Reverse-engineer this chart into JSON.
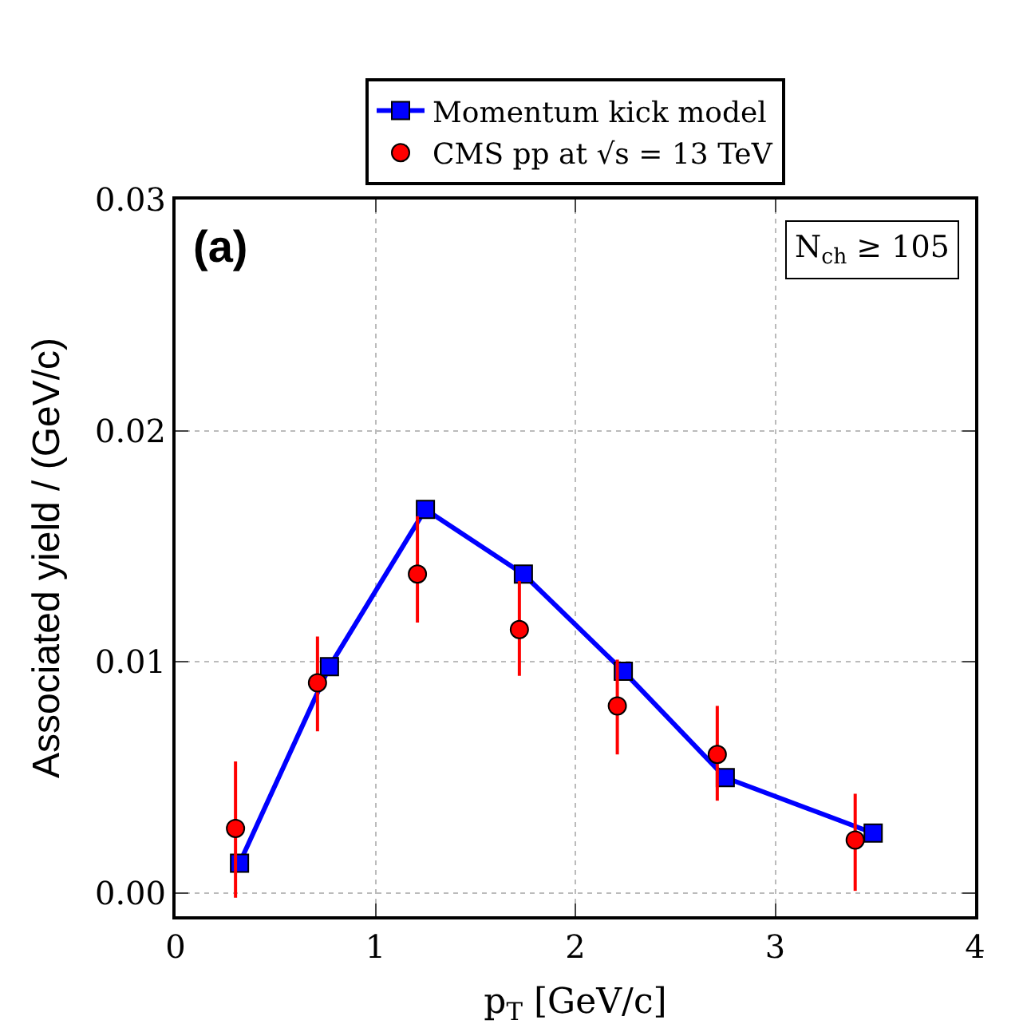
{
  "chart_data": {
    "type": "line",
    "xlabel": "p$_{T}$ [GeV/c]",
    "ylabel": "Associated yield / (GeV/c)",
    "xlim": [
      0,
      4
    ],
    "xticks": [
      0,
      1,
      2,
      3,
      4
    ],
    "ylim": [
      -0.001,
      0.03
    ],
    "yticks": [
      {
        "value": 0,
        "label": "0.00"
      },
      {
        "value": 0.01,
        "label": "0.01"
      },
      {
        "value": 0.02,
        "label": "0.02"
      },
      {
        "value": 0.03,
        "label": "0.03"
      }
    ],
    "grid": true,
    "legend": "top",
    "annotations": [
      "(a)",
      "N$_{ch}$ ≥ 105"
    ],
    "series": [
      {
        "name": "Momentum kick model",
        "marker": "square",
        "color": "#0000ff",
        "x": [
          0.32,
          0.77,
          1.25,
          1.74,
          2.24,
          2.75,
          3.49
        ],
        "values": [
          0.0013,
          0.0098,
          0.0166,
          0.0138,
          0.0096,
          0.005,
          0.0026
        ]
      },
      {
        "name": "CMS pp at √s = 13 TeV",
        "type": "scatter",
        "marker": "circle",
        "color": "#ff0000",
        "x": [
          0.3,
          0.71,
          1.21,
          1.72,
          2.21,
          2.71,
          3.4
        ],
        "values": [
          0.0028,
          0.0091,
          0.0138,
          0.0114,
          0.0081,
          0.006,
          0.0023
        ],
        "errors": [
          [
            -0.0002,
            0.0057
          ],
          [
            0.007,
            0.0111
          ],
          [
            0.0117,
            0.0163
          ],
          [
            0.0094,
            0.0135
          ],
          [
            0.006,
            0.0101
          ],
          [
            0.004,
            0.0081
          ],
          [
            0.0001,
            0.0043
          ]
        ]
      }
    ]
  }
}
